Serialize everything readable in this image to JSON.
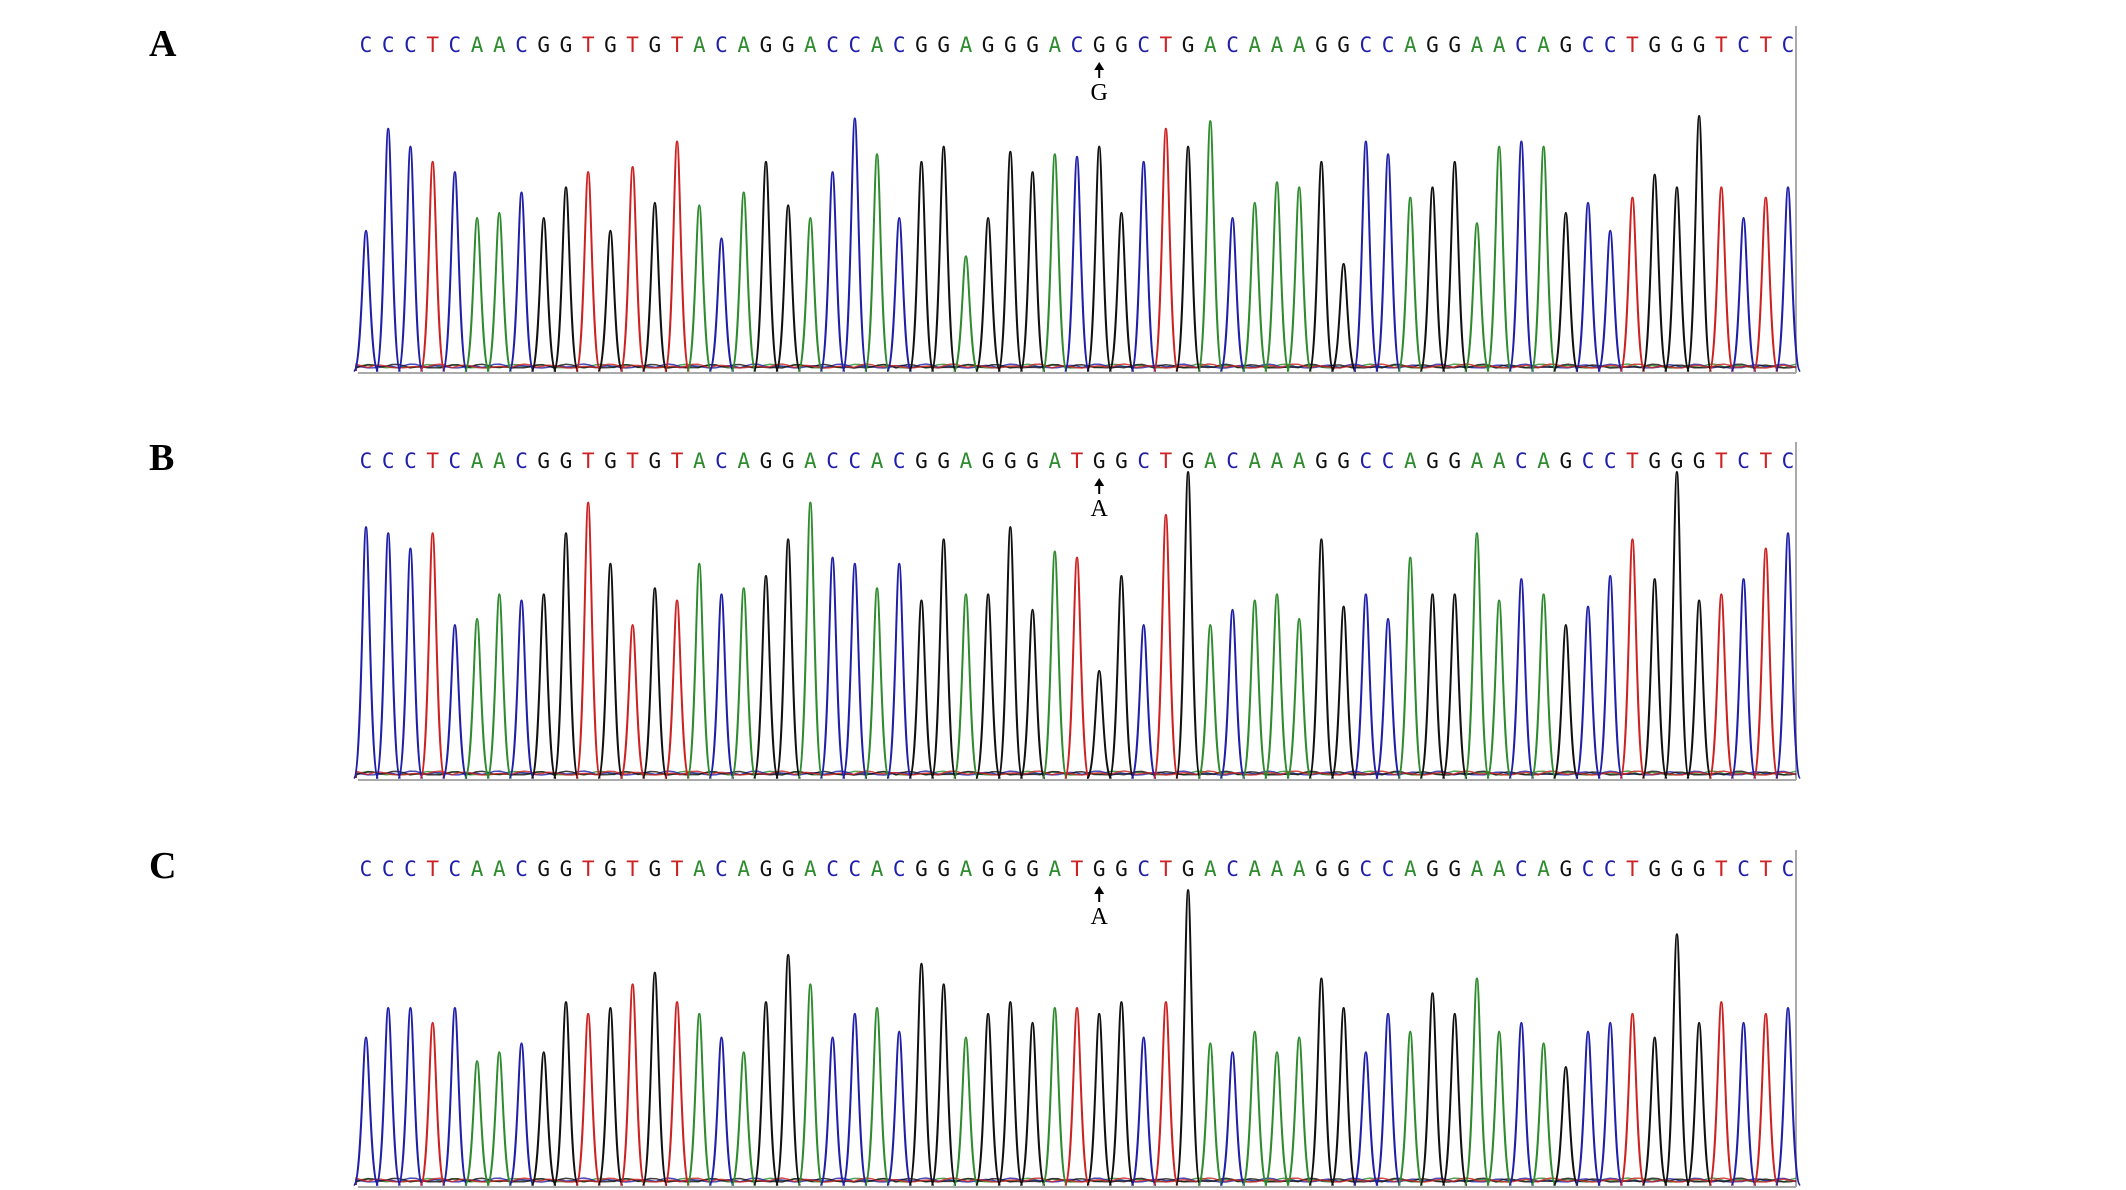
{
  "colors": {
    "A": "#2e8b2e",
    "C": "#1f1fa8",
    "G": "#111111",
    "T": "#cc2222",
    "frame": "#aaaaaa"
  },
  "chart_data": [
    {
      "type": "line",
      "panel_label": "A",
      "sequence": "CCCTCAACGGTGTGTACAGGACCACGGAGGGACGGCTGACAAAGGCCAGGAACAGCCTGGGTCTC",
      "variant_index": 33,
      "variant_label": "G",
      "peak_heights": [
        0.55,
        0.95,
        0.88,
        0.82,
        0.78,
        0.6,
        0.62,
        0.7,
        0.6,
        0.72,
        0.78,
        0.55,
        0.8,
        0.66,
        0.9,
        0.65,
        0.52,
        0.7,
        0.82,
        0.65,
        0.6,
        0.78,
        0.99,
        0.85,
        0.6,
        0.82,
        0.88,
        0.45,
        0.6,
        0.86,
        0.78,
        0.85,
        0.84,
        0.88,
        0.62,
        0.82,
        0.95,
        0.88,
        0.98,
        0.6,
        0.66,
        0.74,
        0.72,
        0.82,
        0.42,
        0.9,
        0.85,
        0.68,
        0.72,
        0.82,
        0.58,
        0.88,
        0.9,
        0.88,
        0.62,
        0.66,
        0.55,
        0.68,
        0.77,
        0.72,
        1.0,
        0.72,
        0.6,
        0.68,
        0.72
      ]
    },
    {
      "type": "line",
      "panel_label": "B",
      "sequence": "CCCTCAACGGTGTGTACAGGACCACGGAGGGATGGCTGACAAAGGCCAGGAACAGCCTGGGTCTC",
      "variant_index": 33,
      "variant_label": "A",
      "peak_heights": [
        0.82,
        0.8,
        0.75,
        0.8,
        0.5,
        0.52,
        0.6,
        0.58,
        0.6,
        0.8,
        0.9,
        0.7,
        0.5,
        0.62,
        0.58,
        0.7,
        0.6,
        0.62,
        0.66,
        0.78,
        0.9,
        0.72,
        0.7,
        0.62,
        0.7,
        0.58,
        0.78,
        0.6,
        0.6,
        0.82,
        0.55,
        0.74,
        0.72,
        0.35,
        0.66,
        0.5,
        0.86,
        1.0,
        0.5,
        0.55,
        0.58,
        0.6,
        0.52,
        0.78,
        0.56,
        0.6,
        0.52,
        0.72,
        0.6,
        0.6,
        0.8,
        0.58,
        0.65,
        0.6,
        0.5,
        0.56,
        0.66,
        0.78,
        0.65,
        1.0,
        0.58,
        0.6,
        0.65,
        0.75,
        0.8
      ]
    },
    {
      "type": "line",
      "panel_label": "C",
      "sequence": "CCCTCAACGGTGTGTACAGGACCACGGAGGGATGGCTGACAAAGGCCAGGAACAGCCTGGGTCTC",
      "variant_index": 33,
      "variant_label": "A",
      "peak_heights": [
        0.5,
        0.6,
        0.6,
        0.55,
        0.6,
        0.42,
        0.45,
        0.48,
        0.45,
        0.62,
        0.58,
        0.6,
        0.68,
        0.72,
        0.62,
        0.58,
        0.5,
        0.45,
        0.62,
        0.78,
        0.68,
        0.5,
        0.58,
        0.6,
        0.52,
        0.75,
        0.68,
        0.5,
        0.58,
        0.62,
        0.55,
        0.6,
        0.6,
        0.58,
        0.62,
        0.5,
        0.62,
        1.0,
        0.48,
        0.45,
        0.52,
        0.45,
        0.5,
        0.7,
        0.6,
        0.45,
        0.58,
        0.52,
        0.65,
        0.58,
        0.7,
        0.52,
        0.55,
        0.48,
        0.4,
        0.52,
        0.55,
        0.58,
        0.5,
        0.85,
        0.55,
        0.62,
        0.55,
        0.58,
        0.6
      ]
    }
  ]
}
